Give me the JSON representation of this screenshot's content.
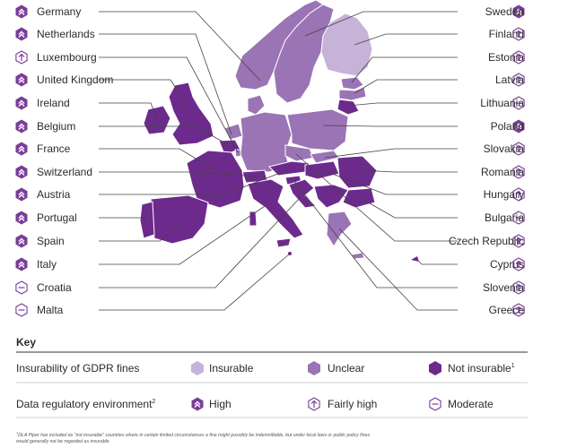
{
  "left_countries": [
    {
      "name": "Germany",
      "icon": "high-icon"
    },
    {
      "name": "Netherlands",
      "icon": "high-icon"
    },
    {
      "name": "Luxembourg",
      "icon": "fairly-high-icon"
    },
    {
      "name": "United Kingdom",
      "icon": "high-icon"
    },
    {
      "name": "Ireland",
      "icon": "high-icon"
    },
    {
      "name": "Belgium",
      "icon": "high-icon"
    },
    {
      "name": "France",
      "icon": "high-icon"
    },
    {
      "name": "Switzerland",
      "icon": "high-icon"
    },
    {
      "name": "Austria",
      "icon": "high-icon"
    },
    {
      "name": "Portugal",
      "icon": "high-icon"
    },
    {
      "name": "Spain",
      "icon": "high-icon"
    },
    {
      "name": "Italy",
      "icon": "high-icon"
    },
    {
      "name": "Croatia",
      "icon": "moderate-icon"
    },
    {
      "name": "Malta",
      "icon": "moderate-icon"
    }
  ],
  "right_countries": [
    {
      "name": "Sweden",
      "icon": "high-icon"
    },
    {
      "name": "Finland",
      "icon": "fairly-high-icon"
    },
    {
      "name": "Estonia",
      "icon": "fairly-high-icon"
    },
    {
      "name": "Latvia",
      "icon": "fairly-high-icon"
    },
    {
      "name": "Lithuania",
      "icon": "moderate-icon"
    },
    {
      "name": "Poland",
      "icon": "high-icon"
    },
    {
      "name": "Slovakia",
      "icon": "fairly-high-icon"
    },
    {
      "name": "Romania",
      "icon": "fairly-high-icon"
    },
    {
      "name": "Hungary",
      "icon": "fairly-high-icon"
    },
    {
      "name": "Bulgaria",
      "icon": "moderate-icon"
    },
    {
      "name": "Czech Republic",
      "icon": "fairly-high-icon"
    },
    {
      "name": "Cyprus",
      "icon": "fairly-high-icon"
    },
    {
      "name": "Slovenia",
      "icon": "fairly-high-icon"
    },
    {
      "name": "Greece",
      "icon": "fairly-high-icon"
    }
  ],
  "key": {
    "title": "Key",
    "row1": {
      "label": "Insurability of GDPR fines",
      "items": [
        "Insurable",
        "Unclear",
        "Not insurable"
      ],
      "sup": "1"
    },
    "row2": {
      "label": "Data regulatory environment",
      "sup": "2",
      "items": [
        "High",
        "Fairly high",
        "Moderate"
      ]
    }
  },
  "colors": {
    "insurable": "#c7b2d8",
    "unclear": "#9a74b5",
    "not_insurable": "#6c2a8c",
    "icon": "#7a3d97",
    "line": "#444444"
  },
  "footnote": {
    "line1": "DLA Piper has included as \"not insurable\" countries where in certain limited circumstances a fine might possibly be indemnifiable, but under local laws or public policy fines",
    "line2": "would generally not be regarded as insurable",
    "sup": "1"
  }
}
